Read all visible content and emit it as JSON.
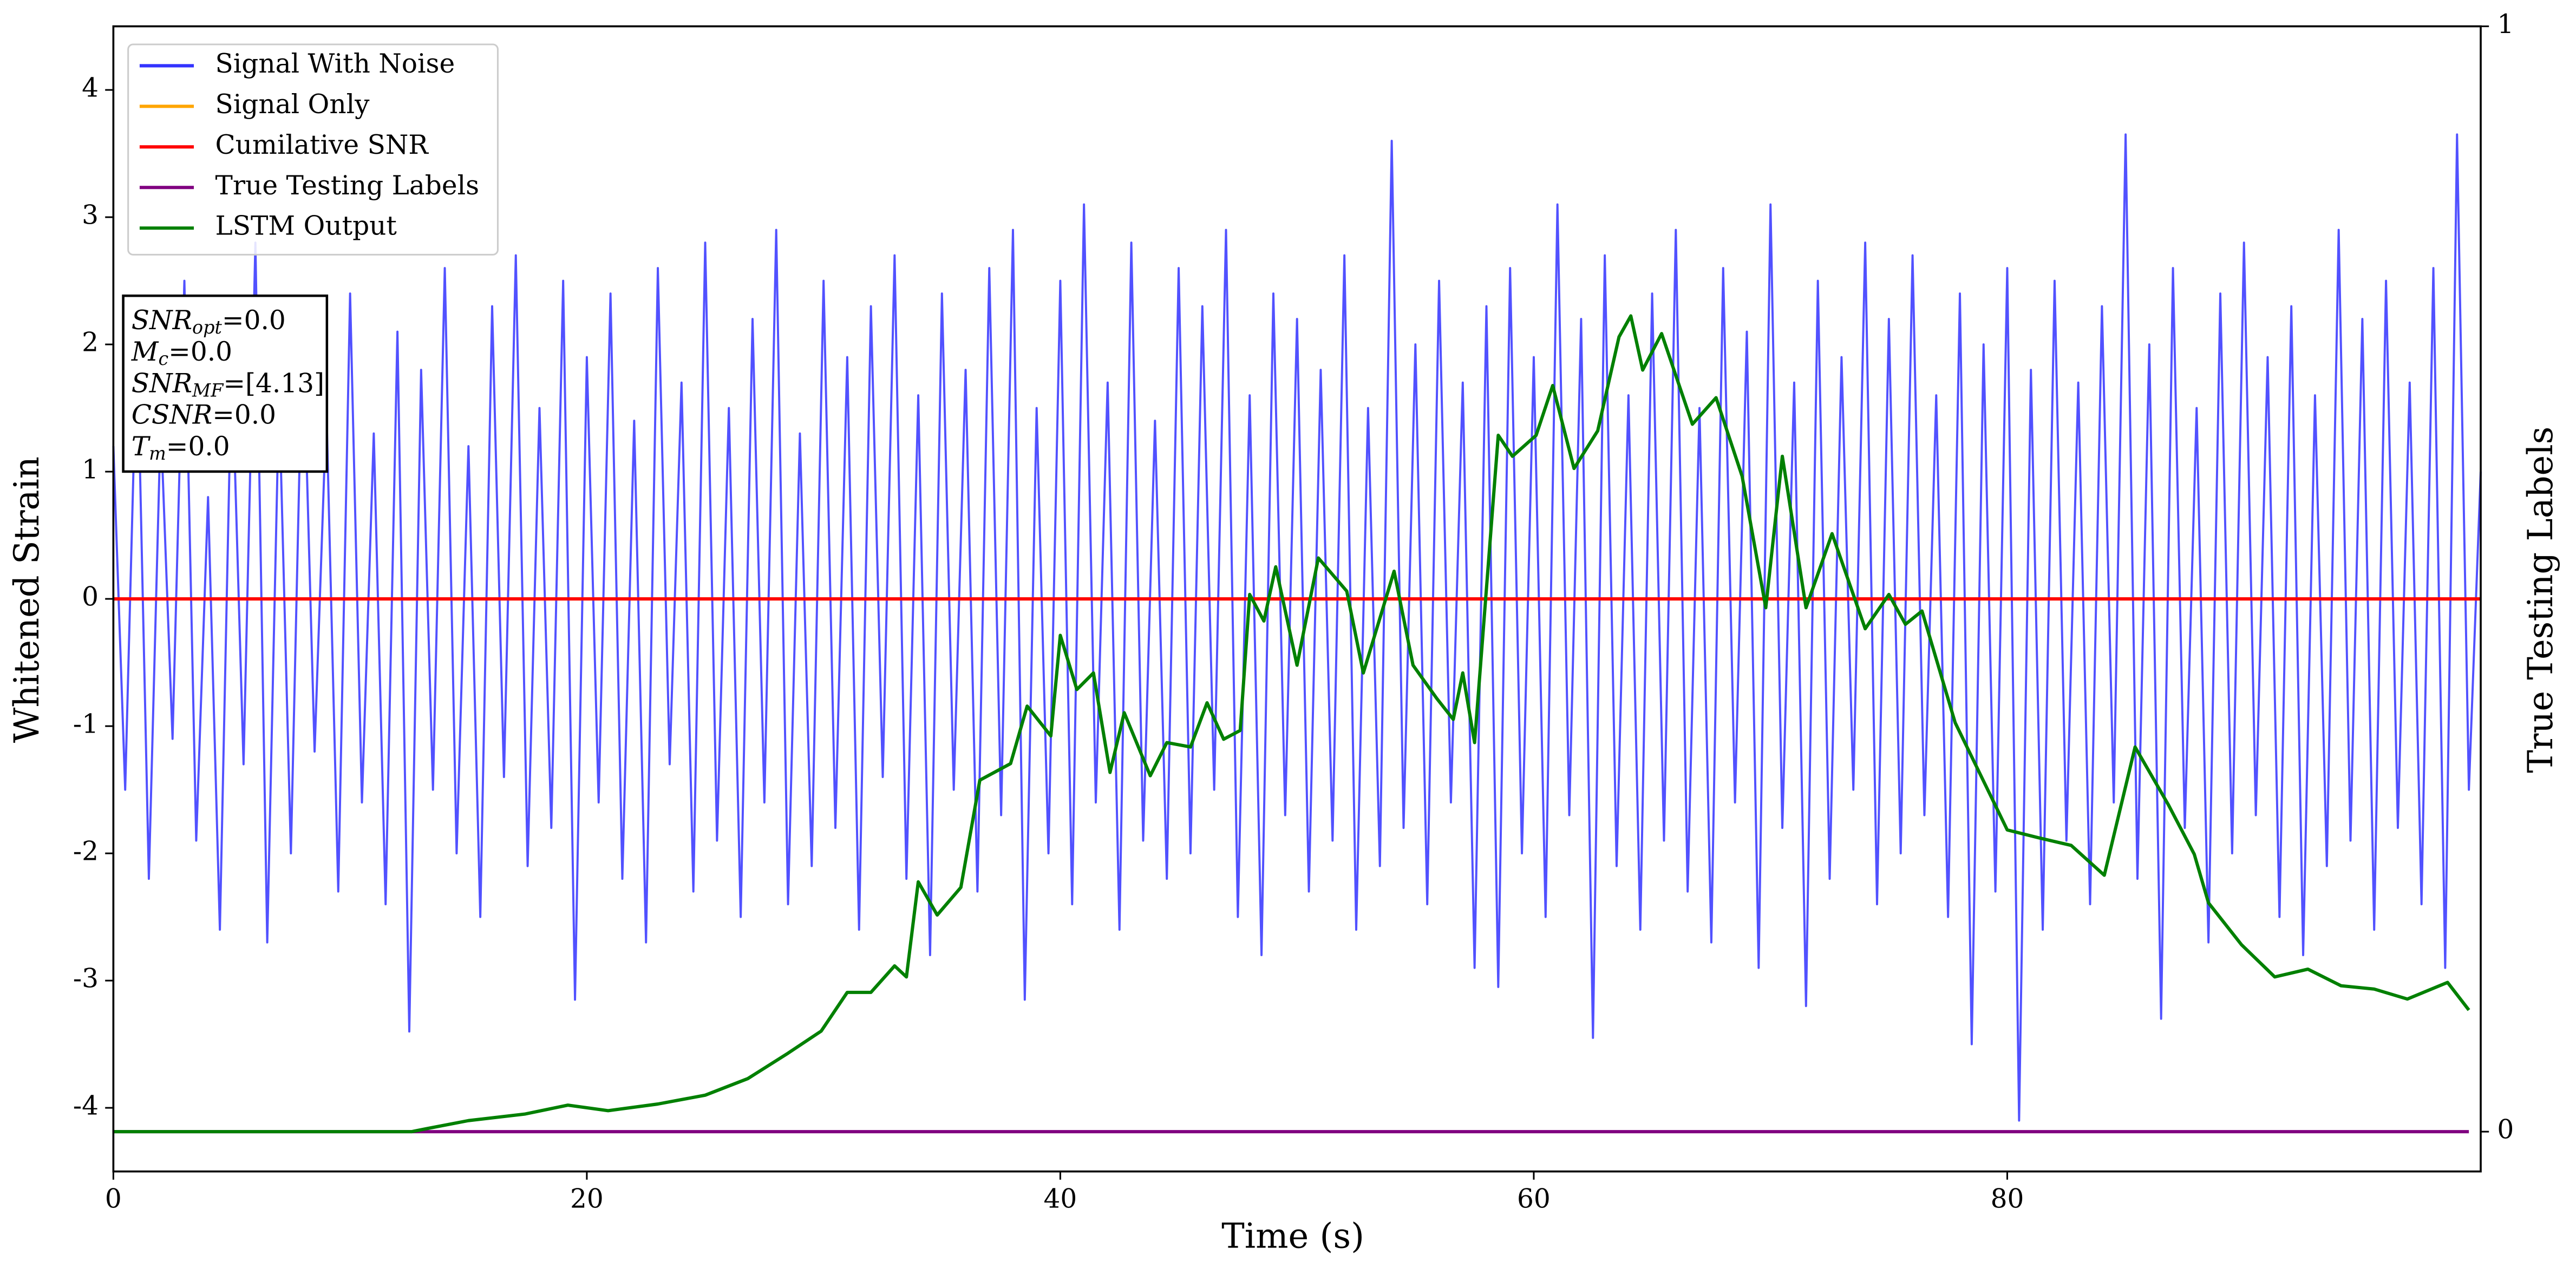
{
  "chart_data": {
    "type": "line",
    "xlabel": "Time (s)",
    "ylabel": "Whitened Strain",
    "y2label": "True Testing Labels",
    "xlim": [
      0,
      100
    ],
    "ylim": [
      -4.5,
      4.5
    ],
    "y2lim": [
      -0.036,
      1
    ],
    "xticks": [
      0,
      20,
      40,
      60,
      80
    ],
    "yticks": [
      -4,
      -3,
      -2,
      -1,
      0,
      1,
      2,
      3,
      4
    ],
    "y2ticks": [
      0,
      1
    ],
    "legend": "upper left",
    "annotation": [
      {
        "name": "SNR",
        "sub": "opt",
        "text": "=0.0"
      },
      {
        "name": "M",
        "sub": "c",
        "text": "=0.0"
      },
      {
        "name": "SNR",
        "sub": "MF",
        "text": "=[4.13]"
      },
      {
        "name": "CSNR",
        "text": "=0.0"
      },
      {
        "name": "T",
        "sub": "m",
        "text": "=0.0"
      }
    ],
    "series": [
      {
        "name": "Signal With Noise",
        "color": "#3333ff",
        "x": [
          0,
          0.5,
          1,
          1.5,
          2,
          2.5,
          3,
          3.5,
          4,
          4.5,
          5,
          5.5,
          6,
          6.5,
          7,
          7.5,
          8,
          8.5,
          9,
          9.5,
          10,
          10.5,
          11,
          11.5,
          12,
          12.5,
          13,
          13.5,
          14,
          14.5,
          15,
          15.5,
          16,
          16.5,
          17,
          17.5,
          18,
          18.5,
          19,
          19.5,
          20,
          20.5,
          21,
          21.5,
          22,
          22.5,
          23,
          23.5,
          24,
          24.5,
          25,
          25.5,
          26,
          26.5,
          27,
          27.5,
          28,
          28.5,
          29,
          29.5,
          30,
          30.5,
          31,
          31.5,
          32,
          32.5,
          33,
          33.5,
          34,
          34.5,
          35,
          35.5,
          36,
          36.5,
          37,
          37.5,
          38,
          38.5,
          39,
          39.5,
          40,
          40.5,
          41,
          41.5,
          42,
          42.5,
          43,
          43.5,
          44,
          44.5,
          45,
          45.5,
          46,
          46.5,
          47,
          47.5,
          48,
          48.5,
          49,
          49.5,
          50,
          50.5,
          51,
          51.5,
          52,
          52.5,
          53,
          53.5,
          54,
          54.5,
          55,
          55.5,
          56,
          56.5,
          57,
          57.5,
          58,
          58.5,
          59,
          59.5,
          60,
          60.5,
          61,
          61.5,
          62,
          62.5,
          63,
          63.5,
          64,
          64.5,
          65,
          65.5,
          66,
          66.5,
          67,
          67.5,
          68,
          68.5,
          69,
          69.5,
          70,
          70.5,
          71,
          71.5,
          72,
          72.5,
          73,
          73.5,
          74,
          74.5,
          75,
          75.5,
          76,
          76.5,
          77,
          77.5,
          78,
          78.5,
          79,
          79.5,
          80,
          80.5,
          81,
          81.5,
          82,
          82.5,
          83,
          83.5,
          84,
          84.5,
          85,
          85.5,
          86,
          86.5,
          87,
          87.5,
          88,
          88.5,
          89,
          89.5,
          90,
          90.5,
          91,
          91.5,
          92,
          92.5,
          93,
          93.5,
          94,
          94.5,
          95,
          95.5,
          96,
          96.5,
          97,
          97.5,
          98,
          98.5,
          99,
          99.5,
          100
        ],
        "values": [
          1.2,
          -1.5,
          2.1,
          -2.2,
          1.4,
          -1.1,
          2.5,
          -1.9,
          0.8,
          -2.6,
          1.9,
          -1.3,
          2.8,
          -2.7,
          1.6,
          -2.0,
          2.2,
          -1.2,
          1.5,
          -2.3,
          2.4,
          -1.6,
          1.3,
          -2.4,
          2.1,
          -3.4,
          1.8,
          -1.5,
          2.6,
          -2.0,
          1.2,
          -2.5,
          2.3,
          -1.4,
          2.7,
          -2.1,
          1.5,
          -1.8,
          2.5,
          -3.15,
          1.9,
          -1.6,
          2.4,
          -2.2,
          1.4,
          -2.7,
          2.6,
          -1.3,
          1.7,
          -2.3,
          2.8,
          -1.9,
          1.5,
          -2.5,
          2.2,
          -1.6,
          2.9,
          -2.4,
          1.3,
          -2.1,
          2.5,
          -1.8,
          1.9,
          -2.6,
          2.3,
          -1.4,
          2.7,
          -2.2,
          1.6,
          -2.8,
          2.4,
          -1.5,
          1.8,
          -2.3,
          2.6,
          -1.7,
          2.9,
          -3.15,
          1.5,
          -2.0,
          2.5,
          -2.4,
          3.1,
          -1.6,
          1.7,
          -2.6,
          2.8,
          -1.9,
          1.4,
          -2.2,
          2.6,
          -2.0,
          2.3,
          -1.5,
          2.9,
          -2.5,
          1.6,
          -2.8,
          2.4,
          -1.7,
          2.2,
          -2.3,
          1.8,
          -1.9,
          2.7,
          -2.6,
          1.5,
          -2.1,
          3.6,
          -1.8,
          2.0,
          -2.4,
          2.5,
          -1.6,
          1.7,
          -2.9,
          2.3,
          -3.05,
          2.6,
          -2.0,
          1.9,
          -2.5,
          3.1,
          -1.7,
          2.2,
          -3.45,
          2.7,
          -2.1,
          1.6,
          -2.6,
          2.4,
          -1.9,
          2.9,
          -2.3,
          1.5,
          -2.7,
          2.6,
          -1.6,
          2.1,
          -2.9,
          3.1,
          -1.8,
          1.7,
          -3.2,
          2.5,
          -2.2,
          1.9,
          -1.5,
          2.8,
          -2.4,
          2.2,
          -2.0,
          2.7,
          -1.7,
          1.6,
          -2.5,
          2.4,
          -3.5,
          2.0,
          -2.3,
          2.6,
          -4.1,
          1.8,
          -2.6,
          2.5,
          -1.9,
          1.7,
          -2.4,
          2.3,
          -1.6,
          3.65,
          -2.2,
          2.0,
          -3.3,
          2.6,
          -1.8,
          1.5,
          -2.7,
          2.4,
          -2.0,
          2.8,
          -1.7,
          1.9,
          -2.5,
          2.3,
          -2.8,
          1.6,
          -2.1,
          2.9,
          -1.9,
          2.2,
          -2.6,
          2.5,
          -1.8,
          1.7,
          -2.4,
          2.6,
          -2.9,
          3.65,
          -1.5,
          1.0
        ]
      },
      {
        "name": "Signal Only",
        "color": "orange",
        "x": [
          0,
          100
        ],
        "values": [
          0,
          0
        ]
      },
      {
        "name": "Cumilative SNR",
        "color": "red",
        "x": [
          0,
          100
        ],
        "values": [
          0,
          0
        ]
      },
      {
        "name": "True Testing Labels",
        "color": "purple",
        "axis": "y2",
        "x": [
          0,
          99.5
        ],
        "values": [
          0,
          0
        ]
      },
      {
        "name": "LSTM Output",
        "color": "green",
        "axis": "y2",
        "x": [
          0,
          12.6,
          13.3,
          15,
          17.4,
          19.2,
          20.9,
          23,
          25,
          26.8,
          28.5,
          29.9,
          31,
          32,
          33,
          33.5,
          34,
          34.8,
          35.8,
          36.6,
          37.9,
          38.6,
          39.6,
          40,
          40.7,
          41.4,
          42.1,
          42.7,
          43.8,
          44.5,
          45.5,
          46.2,
          46.9,
          47.6,
          48,
          48.6,
          49.1,
          50,
          50.9,
          52.1,
          52.8,
          54.1,
          54.9,
          55.9,
          56.6,
          57,
          57.5,
          58.5,
          59.1,
          60.1,
          60.8,
          61.7,
          62.7,
          63.6,
          64.1,
          64.6,
          65.4,
          66.7,
          67.7,
          68.8,
          69.8,
          70.5,
          71.5,
          72.6,
          74,
          75,
          75.7,
          76.4,
          77.8,
          80,
          81.3,
          82.7,
          84.1,
          85.4,
          86.8,
          87.9,
          88.5,
          89.9,
          91.3,
          92.7,
          94.1,
          95.5,
          96.9,
          98.6,
          99.5
        ],
        "values": [
          0,
          0,
          0.003,
          0.01,
          0.016,
          0.024,
          0.019,
          0.025,
          0.033,
          0.048,
          0.071,
          0.091,
          0.126,
          0.126,
          0.15,
          0.14,
          0.226,
          0.196,
          0.221,
          0.318,
          0.333,
          0.385,
          0.358,
          0.449,
          0.4,
          0.415,
          0.325,
          0.379,
          0.322,
          0.352,
          0.348,
          0.388,
          0.355,
          0.363,
          0.486,
          0.462,
          0.511,
          0.422,
          0.519,
          0.489,
          0.415,
          0.507,
          0.422,
          0.392,
          0.373,
          0.415,
          0.352,
          0.63,
          0.611,
          0.63,
          0.675,
          0.6,
          0.634,
          0.719,
          0.738,
          0.689,
          0.722,
          0.64,
          0.664,
          0.593,
          0.474,
          0.611,
          0.474,
          0.541,
          0.455,
          0.486,
          0.459,
          0.471,
          0.37,
          0.273,
          0.266,
          0.259,
          0.232,
          0.348,
          0.296,
          0.251,
          0.207,
          0.169,
          0.14,
          0.147,
          0.132,
          0.129,
          0.12,
          0.135,
          0.11
        ]
      }
    ]
  }
}
